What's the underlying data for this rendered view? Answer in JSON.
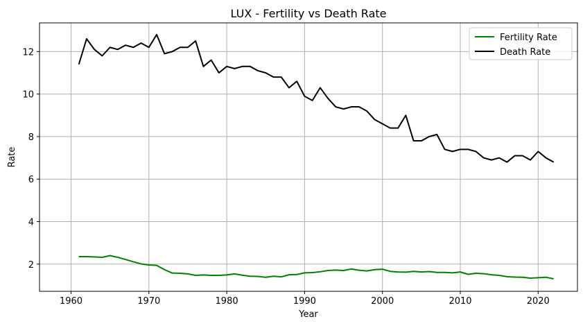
{
  "chart_data": {
    "type": "line",
    "title": "LUX - Fertility vs Death Rate",
    "xlabel": "Year",
    "ylabel": "Rate",
    "xlim": [
      1955.95,
      2025.05
    ],
    "ylim": [
      0.72,
      13.35
    ],
    "xticks": [
      1960,
      1970,
      1980,
      1990,
      2000,
      2010,
      2020
    ],
    "yticks": [
      2,
      4,
      6,
      8,
      10,
      12
    ],
    "grid": true,
    "legend_position": "top-right",
    "x": [
      1961,
      1962,
      1963,
      1964,
      1965,
      1966,
      1967,
      1968,
      1969,
      1970,
      1971,
      1972,
      1973,
      1974,
      1975,
      1976,
      1977,
      1978,
      1979,
      1980,
      1981,
      1982,
      1983,
      1984,
      1985,
      1986,
      1987,
      1988,
      1989,
      1990,
      1991,
      1992,
      1993,
      1994,
      1995,
      1996,
      1997,
      1998,
      1999,
      2000,
      2001,
      2002,
      2003,
      2004,
      2005,
      2006,
      2007,
      2008,
      2009,
      2010,
      2011,
      2012,
      2013,
      2014,
      2015,
      2016,
      2017,
      2018,
      2019,
      2020,
      2021,
      2022
    ],
    "series": [
      {
        "name": "Fertility Rate",
        "color": "#008000",
        "values": [
          2.35,
          2.35,
          2.34,
          2.32,
          2.4,
          2.32,
          2.22,
          2.11,
          2.01,
          1.96,
          1.94,
          1.74,
          1.58,
          1.57,
          1.54,
          1.47,
          1.49,
          1.47,
          1.47,
          1.49,
          1.54,
          1.48,
          1.43,
          1.42,
          1.38,
          1.43,
          1.4,
          1.5,
          1.51,
          1.59,
          1.6,
          1.64,
          1.7,
          1.72,
          1.7,
          1.77,
          1.71,
          1.68,
          1.74,
          1.76,
          1.66,
          1.63,
          1.62,
          1.66,
          1.63,
          1.65,
          1.61,
          1.61,
          1.59,
          1.63,
          1.52,
          1.57,
          1.55,
          1.5,
          1.47,
          1.41,
          1.39,
          1.38,
          1.34,
          1.36,
          1.38,
          1.31
        ]
      },
      {
        "name": "Death Rate",
        "color": "#000000",
        "values": [
          11.4,
          12.6,
          12.1,
          11.8,
          12.2,
          12.1,
          12.3,
          12.2,
          12.4,
          12.2,
          12.8,
          11.9,
          12.0,
          12.2,
          12.2,
          12.5,
          11.3,
          11.6,
          11.0,
          11.3,
          11.2,
          11.3,
          11.3,
          11.1,
          11.0,
          10.8,
          10.8,
          10.3,
          10.6,
          9.9,
          9.7,
          10.3,
          9.8,
          9.4,
          9.3,
          9.4,
          9.4,
          9.2,
          8.8,
          8.6,
          8.4,
          8.4,
          9.0,
          7.8,
          7.8,
          8.0,
          8.1,
          7.4,
          7.3,
          7.4,
          7.4,
          7.3,
          7.0,
          6.9,
          7.0,
          6.8,
          7.1,
          7.1,
          6.9,
          7.3,
          7.0,
          6.8
        ]
      }
    ]
  }
}
